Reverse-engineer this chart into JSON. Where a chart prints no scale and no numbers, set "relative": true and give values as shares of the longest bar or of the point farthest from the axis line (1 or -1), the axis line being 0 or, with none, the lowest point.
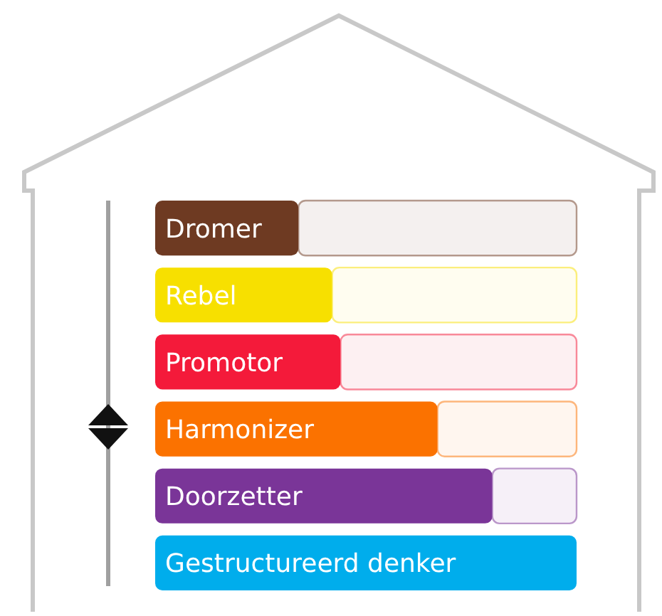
{
  "chart_data": {
    "type": "bar",
    "orientation": "horizontal",
    "relative": true,
    "stacked": true,
    "categories": [
      "Dromer",
      "Rebel",
      "Promotor",
      "Harmonizer",
      "Doorzetter",
      "Gestructureerd denker"
    ],
    "series": [
      {
        "colors": [
          "#6e3a22",
          "#f7e000",
          "#f41a3a",
          "#fb7200",
          "#7a3598",
          "#00adec"
        ],
        "values": [
          0.34,
          0.42,
          0.44,
          0.67,
          0.8,
          1
        ]
      },
      {
        "colors": [
          "#f4f0ef",
          "#fffdf0",
          "#fdf0f2",
          "#fff6ef",
          "#f6f0f8",
          "#f0f9fe"
        ],
        "values": [
          0.66,
          0.58,
          0.56,
          0.33,
          0.2,
          0
        ]
      }
    ]
  }
}
